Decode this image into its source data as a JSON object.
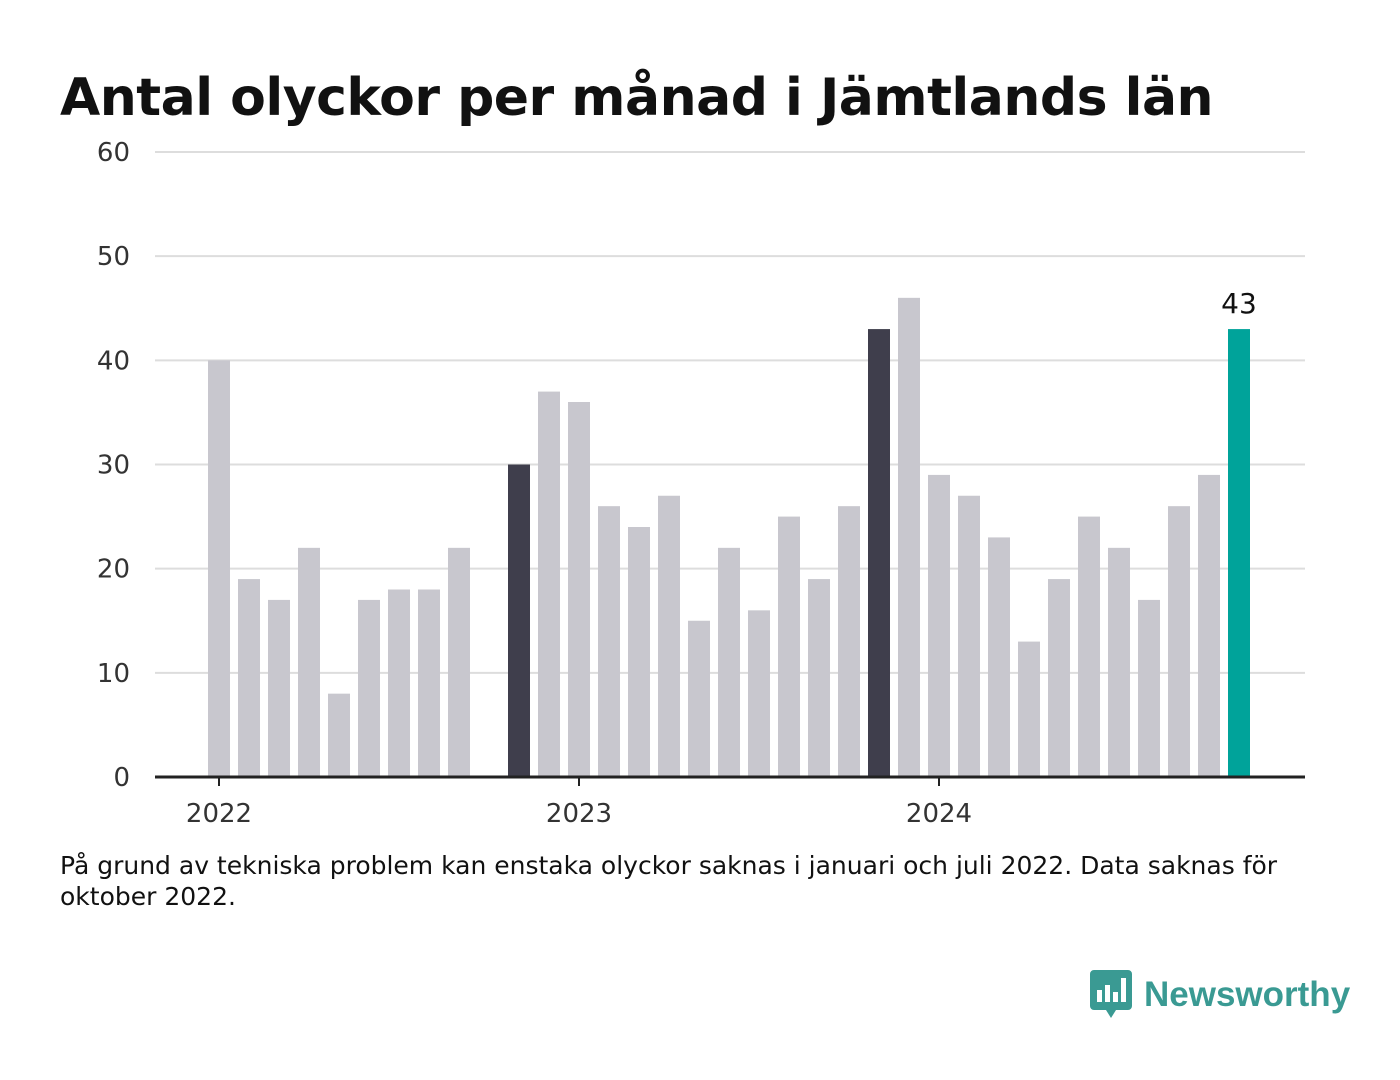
{
  "title": "Antal olyckor per månad i Jämtlands län",
  "note": "På grund av tekniska problem kan enstaka olyckor saknas i januari och juli 2022. Data saknas för oktober 2022.",
  "brand": {
    "name": "Newsworthy",
    "icon": "newsworthy-logo-icon"
  },
  "colors": {
    "default": "#c8c7ce",
    "highlight": "#3f3e4c",
    "current": "#00a39a",
    "axis": "#222222",
    "grid": "#dddddd"
  },
  "chart_data": {
    "type": "bar",
    "title": "Antal olyckor per månad i Jämtlands län",
    "xlabel": "",
    "ylabel": "",
    "ylim": [
      0,
      60
    ],
    "yticks": [
      0,
      10,
      20,
      30,
      40,
      50,
      60
    ],
    "grid": true,
    "legend": "none",
    "x_tick_labels": [
      {
        "label": "2022",
        "x": "2022-01"
      },
      {
        "label": "2023",
        "x": "2023-01"
      },
      {
        "label": "2024",
        "x": "2024-01"
      }
    ],
    "x": [
      "2022-01",
      "2022-02",
      "2022-03",
      "2022-04",
      "2022-05",
      "2022-06",
      "2022-07",
      "2022-08",
      "2022-09",
      "2022-10",
      "2022-11",
      "2022-12",
      "2023-01",
      "2023-02",
      "2023-03",
      "2023-04",
      "2023-05",
      "2023-06",
      "2023-07",
      "2023-08",
      "2023-09",
      "2023-10",
      "2023-11",
      "2023-12",
      "2024-01",
      "2024-02",
      "2024-03",
      "2024-04",
      "2024-05",
      "2024-06",
      "2024-07",
      "2024-08",
      "2024-09",
      "2024-10",
      "2024-11",
      "2024-12"
    ],
    "values": [
      40,
      19,
      17,
      22,
      8,
      17,
      18,
      18,
      22,
      null,
      30,
      37,
      36,
      26,
      24,
      27,
      15,
      22,
      16,
      25,
      19,
      26,
      43,
      46,
      29,
      27,
      23,
      13,
      19,
      25,
      22,
      17,
      26,
      29,
      43,
      null
    ],
    "highlighted": [
      "2022-11",
      "2023-11"
    ],
    "current": "2024-11",
    "data_labels": [
      {
        "x": "2024-11",
        "value": "43"
      }
    ]
  }
}
